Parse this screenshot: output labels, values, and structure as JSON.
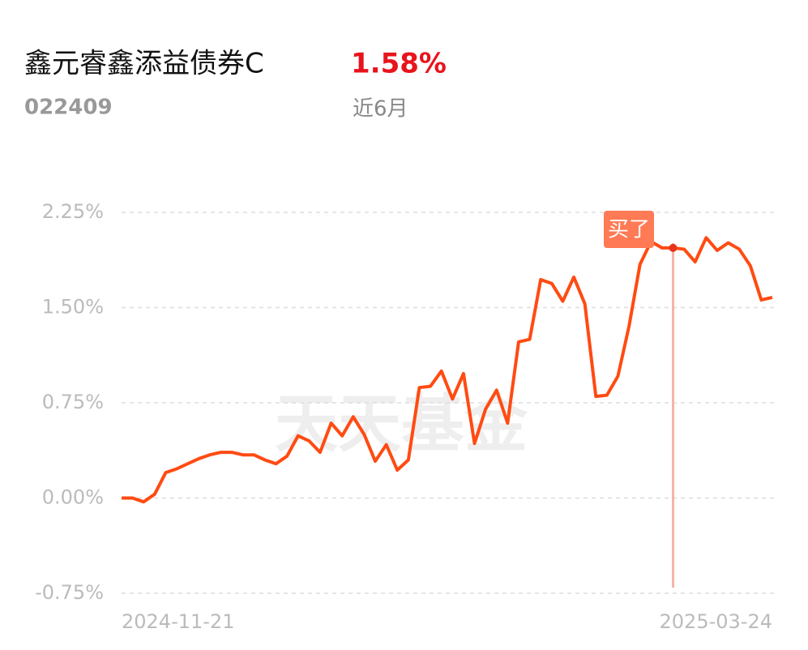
{
  "header": {
    "title": "鑫元睿鑫添益债券C",
    "return": "1.58%",
    "code": "022409",
    "period": "近6月"
  },
  "chart_data": {
    "type": "line",
    "watermark": "天天基金",
    "categories": [
      "2024-11-21",
      null,
      null,
      null,
      null,
      null,
      null,
      null,
      null,
      null,
      null,
      null,
      null,
      null,
      null,
      null,
      null,
      null,
      null,
      null,
      null,
      null,
      null,
      null,
      null,
      null,
      null,
      null,
      null,
      null,
      null,
      null,
      null,
      null,
      null,
      null,
      null,
      null,
      null,
      null,
      null,
      null,
      null,
      null,
      null,
      null,
      null,
      null,
      null,
      null,
      null,
      null,
      null,
      null,
      null,
      null,
      null,
      null,
      null,
      "2025-03-24"
    ],
    "series": [
      {
        "color": "#ff4b12",
        "values": [
          0,
          0,
          -0.03,
          0.03,
          0.2,
          0.23,
          0.27,
          0.31,
          0.34,
          0.36,
          0.36,
          0.34,
          0.34,
          0.3,
          0.27,
          0.33,
          0.49,
          0.45,
          0.36,
          0.59,
          0.49,
          0.64,
          0.5,
          0.29,
          0.42,
          0.22,
          0.3,
          0.87,
          0.88,
          1.0,
          0.78,
          0.98,
          0.43,
          0.7,
          0.85,
          0.59,
          1.23,
          1.25,
          1.72,
          1.69,
          1.55,
          1.74,
          1.53,
          0.8,
          0.81,
          0.96,
          1.35,
          1.84,
          2.02,
          1.97,
          1.97,
          1.96,
          1.86,
          2.05,
          1.95,
          2.01,
          1.96,
          1.83,
          1.56,
          1.58
        ]
      }
    ],
    "annotation": {
      "text": "买了",
      "index": 50
    },
    "ylim": [
      -0.75,
      2.25
    ],
    "yticks": [
      {
        "value": -0.75,
        "label": "-0.75%"
      },
      {
        "value": 0,
        "label": "0.00%"
      },
      {
        "value": 0.75,
        "label": "0.75%"
      },
      {
        "value": 1.5,
        "label": "1.50%"
      },
      {
        "value": 2.25,
        "label": "2.25%"
      }
    ],
    "grid": true
  }
}
